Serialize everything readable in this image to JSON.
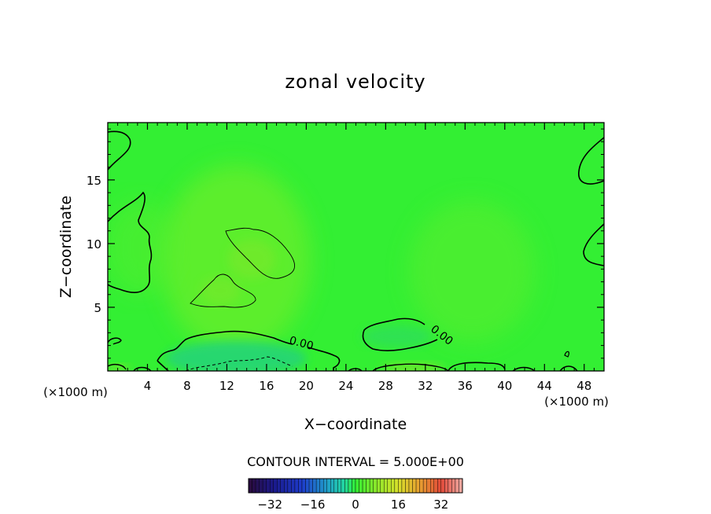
{
  "chart_data": {
    "type": "heatmap",
    "title": "zonal velocity",
    "xlabel": "X−coordinate",
    "ylabel": "Z−coordinate",
    "x_unit": "(×1000 m)",
    "x_unit_right": "(×1000 m)",
    "xlim": [
      0,
      50
    ],
    "ylim": [
      0,
      19.5
    ],
    "x_ticks": [
      4,
      8,
      12,
      16,
      20,
      24,
      28,
      32,
      36,
      40,
      44,
      48
    ],
    "x_tick_labels": [
      "4",
      "8",
      "12",
      "16",
      "20",
      "24",
      "28",
      "32",
      "36",
      "40",
      "44",
      "48"
    ],
    "y_ticks": [
      5,
      10,
      15
    ],
    "y_tick_labels": [
      "5",
      "10",
      "15"
    ],
    "contour_interval_text": "CONTOUR INTERVAL = 5.000E+00",
    "contour_labels": [
      "0.00",
      "0.00"
    ],
    "colorbar": {
      "range": [
        -40,
        40
      ],
      "ticks": [
        -32,
        -16,
        0,
        16,
        32
      ],
      "tick_labels": [
        "−32",
        "−16",
        "0",
        "16",
        "32"
      ]
    },
    "field_colors": {
      "background": "#33ef33",
      "light_band": "#6aee2c",
      "near_surface_low": "#29dc6a",
      "surface_yellow": "#80e82a"
    },
    "contour_color": "#000000"
  }
}
